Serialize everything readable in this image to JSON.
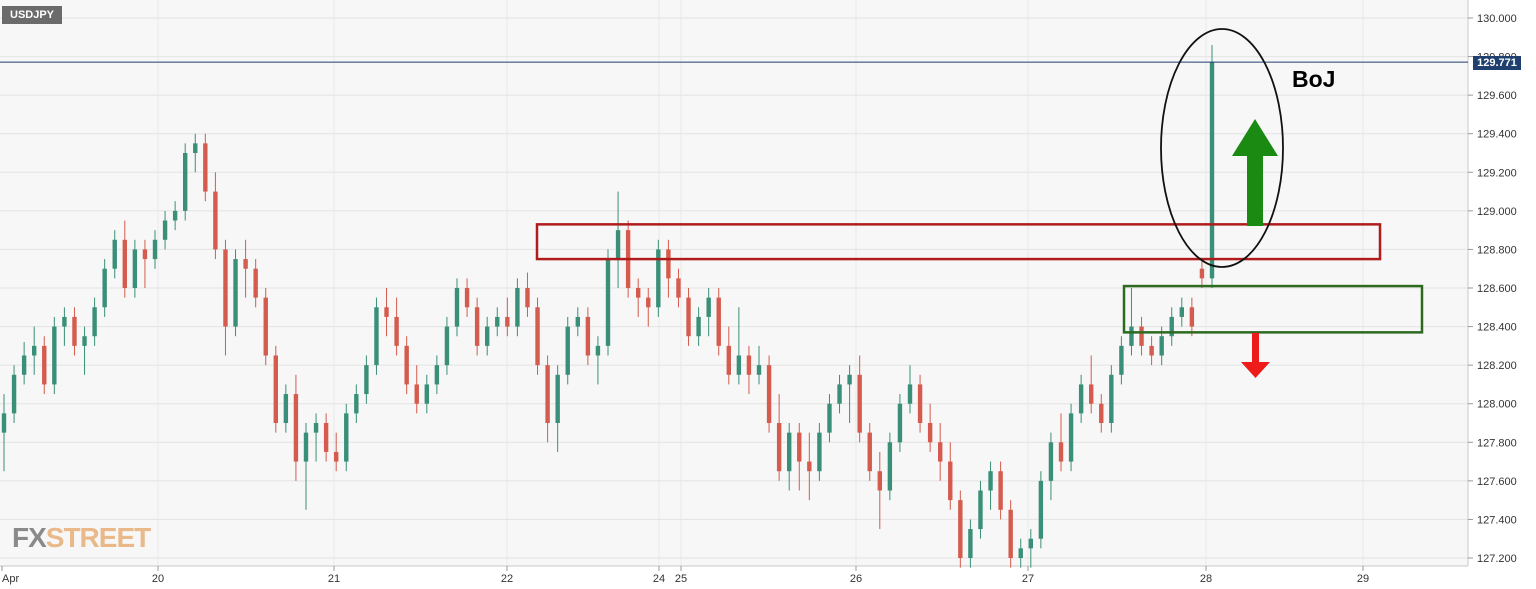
{
  "symbol": "USDJPY",
  "current_price_label": "129.771",
  "annotation_label": "BoJ",
  "logo": {
    "part1": "FX",
    "part2": "STREET"
  },
  "colors": {
    "bullish": "#3a8f78",
    "bearish": "#d45b4d",
    "resistance_box": "#b01c1c",
    "support_box": "#2d6a1f",
    "up_arrow": "#1a8a12",
    "down_arrow": "#ee1b1b",
    "price_line": "#1f3f6e"
  },
  "chart_data": {
    "type": "candlestick",
    "ylim": [
      127.15,
      130.05
    ],
    "yticks": [
      "130.000",
      "129.800",
      "129.600",
      "129.400",
      "129.200",
      "129.000",
      "128.800",
      "128.600",
      "128.400",
      "128.200",
      "128.000",
      "127.800",
      "127.600",
      "127.400",
      "127.200"
    ],
    "xlabels": [
      "Apr",
      "20",
      "21",
      "22",
      "24",
      "25",
      "26",
      "27",
      "28",
      "29"
    ],
    "current_price": 129.771,
    "candles": [
      [
        127.85,
        128.05,
        127.65,
        127.95
      ],
      [
        127.95,
        128.2,
        127.9,
        128.15
      ],
      [
        128.15,
        128.32,
        128.1,
        128.25
      ],
      [
        128.25,
        128.4,
        128.15,
        128.3
      ],
      [
        128.3,
        128.35,
        128.05,
        128.1
      ],
      [
        128.1,
        128.45,
        128.05,
        128.4
      ],
      [
        128.4,
        128.5,
        128.3,
        128.45
      ],
      [
        128.45,
        128.5,
        128.25,
        128.3
      ],
      [
        128.3,
        128.4,
        128.15,
        128.35
      ],
      [
        128.35,
        128.55,
        128.3,
        128.5
      ],
      [
        128.5,
        128.75,
        128.45,
        128.7
      ],
      [
        128.7,
        128.9,
        128.65,
        128.85
      ],
      [
        128.85,
        128.95,
        128.55,
        128.6
      ],
      [
        128.6,
        128.85,
        128.55,
        128.8
      ],
      [
        128.8,
        128.85,
        128.6,
        128.75
      ],
      [
        128.75,
        128.9,
        128.7,
        128.85
      ],
      [
        128.85,
        129.0,
        128.8,
        128.95
      ],
      [
        128.95,
        129.05,
        128.9,
        129.0
      ],
      [
        129.0,
        129.35,
        128.95,
        129.3
      ],
      [
        129.3,
        129.4,
        129.2,
        129.35
      ],
      [
        129.35,
        129.4,
        129.05,
        129.1
      ],
      [
        129.1,
        129.2,
        128.75,
        128.8
      ],
      [
        128.8,
        128.85,
        128.25,
        128.4
      ],
      [
        128.4,
        128.8,
        128.35,
        128.75
      ],
      [
        128.75,
        128.85,
        128.55,
        128.7
      ],
      [
        128.7,
        128.75,
        128.5,
        128.55
      ],
      [
        128.55,
        128.6,
        128.2,
        128.25
      ],
      [
        128.25,
        128.3,
        127.85,
        127.9
      ],
      [
        127.9,
        128.1,
        127.85,
        128.05
      ],
      [
        128.05,
        128.15,
        127.6,
        127.7
      ],
      [
        127.7,
        127.9,
        127.45,
        127.85
      ],
      [
        127.85,
        127.95,
        127.7,
        127.9
      ],
      [
        127.9,
        127.95,
        127.7,
        127.75
      ],
      [
        127.75,
        127.85,
        127.65,
        127.7
      ],
      [
        127.7,
        128.0,
        127.65,
        127.95
      ],
      [
        127.95,
        128.1,
        127.9,
        128.05
      ],
      [
        128.05,
        128.25,
        128.0,
        128.2
      ],
      [
        128.2,
        128.55,
        128.15,
        128.5
      ],
      [
        128.5,
        128.6,
        128.35,
        128.45
      ],
      [
        128.45,
        128.55,
        128.25,
        128.3
      ],
      [
        128.3,
        128.35,
        128.05,
        128.1
      ],
      [
        128.1,
        128.2,
        127.95,
        128.0
      ],
      [
        128.0,
        128.15,
        127.95,
        128.1
      ],
      [
        128.1,
        128.25,
        128.05,
        128.2
      ],
      [
        128.2,
        128.45,
        128.15,
        128.4
      ],
      [
        128.4,
        128.65,
        128.35,
        128.6
      ],
      [
        128.6,
        128.65,
        128.45,
        128.5
      ],
      [
        128.5,
        128.55,
        128.25,
        128.3
      ],
      [
        128.3,
        128.45,
        128.25,
        128.4
      ],
      [
        128.4,
        128.5,
        128.35,
        128.45
      ],
      [
        128.45,
        128.55,
        128.35,
        128.4
      ],
      [
        128.4,
        128.65,
        128.35,
        128.6
      ],
      [
        128.6,
        128.68,
        128.45,
        128.5
      ],
      [
        128.5,
        128.55,
        128.15,
        128.2
      ],
      [
        128.2,
        128.25,
        127.8,
        127.9
      ],
      [
        127.9,
        128.2,
        127.75,
        128.15
      ],
      [
        128.15,
        128.45,
        128.1,
        128.4
      ],
      [
        128.4,
        128.5,
        128.35,
        128.45
      ],
      [
        128.45,
        128.5,
        128.2,
        128.25
      ],
      [
        128.25,
        128.35,
        128.1,
        128.3
      ],
      [
        128.3,
        128.8,
        128.25,
        128.75
      ],
      [
        128.75,
        129.1,
        128.6,
        128.9
      ],
      [
        128.9,
        128.95,
        128.55,
        128.6
      ],
      [
        128.6,
        128.65,
        128.45,
        128.55
      ],
      [
        128.55,
        128.6,
        128.4,
        128.5
      ],
      [
        128.5,
        128.85,
        128.45,
        128.8
      ],
      [
        128.8,
        128.85,
        128.55,
        128.65
      ],
      [
        128.65,
        128.7,
        128.5,
        128.55
      ],
      [
        128.55,
        128.6,
        128.3,
        128.35
      ],
      [
        128.35,
        128.5,
        128.3,
        128.45
      ],
      [
        128.45,
        128.6,
        128.35,
        128.55
      ],
      [
        128.55,
        128.6,
        128.25,
        128.3
      ],
      [
        128.3,
        128.4,
        128.1,
        128.15
      ],
      [
        128.15,
        128.5,
        128.1,
        128.25
      ],
      [
        128.25,
        128.3,
        128.05,
        128.15
      ],
      [
        128.15,
        128.3,
        128.1,
        128.2
      ],
      [
        128.2,
        128.25,
        127.85,
        127.9
      ],
      [
        127.9,
        128.05,
        127.6,
        127.65
      ],
      [
        127.65,
        127.9,
        127.55,
        127.85
      ],
      [
        127.85,
        127.9,
        127.55,
        127.7
      ],
      [
        127.7,
        127.85,
        127.5,
        127.65
      ],
      [
        127.65,
        127.9,
        127.6,
        127.85
      ],
      [
        127.85,
        128.05,
        127.8,
        128.0
      ],
      [
        128.0,
        128.15,
        127.95,
        128.1
      ],
      [
        128.1,
        128.2,
        127.9,
        128.15
      ],
      [
        128.15,
        128.25,
        127.8,
        127.85
      ],
      [
        127.85,
        127.9,
        127.6,
        127.65
      ],
      [
        127.65,
        127.75,
        127.35,
        127.55
      ],
      [
        127.55,
        127.85,
        127.5,
        127.8
      ],
      [
        127.8,
        128.05,
        127.75,
        128.0
      ],
      [
        128.0,
        128.2,
        127.95,
        128.1
      ],
      [
        128.1,
        128.15,
        127.85,
        127.9
      ],
      [
        127.9,
        128.0,
        127.75,
        127.8
      ],
      [
        127.8,
        127.9,
        127.6,
        127.7
      ],
      [
        127.7,
        127.8,
        127.45,
        127.5
      ],
      [
        127.5,
        127.55,
        127.15,
        127.2
      ],
      [
        127.2,
        127.4,
        127.15,
        127.35
      ],
      [
        127.35,
        127.6,
        127.3,
        127.55
      ],
      [
        127.55,
        127.7,
        127.45,
        127.65
      ],
      [
        127.65,
        127.7,
        127.4,
        127.45
      ],
      [
        127.45,
        127.5,
        127.15,
        127.2
      ],
      [
        127.2,
        127.3,
        127.15,
        127.25
      ],
      [
        127.25,
        127.35,
        127.15,
        127.3
      ],
      [
        127.3,
        127.65,
        127.25,
        127.6
      ],
      [
        127.6,
        127.85,
        127.5,
        127.8
      ],
      [
        127.8,
        127.95,
        127.65,
        127.7
      ],
      [
        127.7,
        128.0,
        127.65,
        127.95
      ],
      [
        127.95,
        128.15,
        127.9,
        128.1
      ],
      [
        128.1,
        128.25,
        127.95,
        128.0
      ],
      [
        128.0,
        128.05,
        127.85,
        127.9
      ],
      [
        127.9,
        128.2,
        127.85,
        128.15
      ],
      [
        128.15,
        128.35,
        128.1,
        128.3
      ],
      [
        128.3,
        128.6,
        128.25,
        128.4
      ],
      [
        128.4,
        128.45,
        128.25,
        128.3
      ],
      [
        128.3,
        128.35,
        128.2,
        128.25
      ],
      [
        128.25,
        128.4,
        128.2,
        128.35
      ],
      [
        128.35,
        128.5,
        128.3,
        128.45
      ],
      [
        128.45,
        128.55,
        128.4,
        128.5
      ],
      [
        128.5,
        128.55,
        128.35,
        128.4
      ],
      [
        128.7,
        128.75,
        128.6,
        128.65
      ],
      [
        128.65,
        129.86,
        128.6,
        129.77
      ]
    ],
    "annotations": [
      {
        "type": "resistance-zone",
        "from": 128.75,
        "to": 128.93
      },
      {
        "type": "support-zone",
        "from": 128.37,
        "to": 128.61
      },
      {
        "type": "arrow",
        "direction": "up"
      },
      {
        "type": "arrow",
        "direction": "down"
      },
      {
        "type": "ellipse",
        "label": "BoJ"
      }
    ]
  }
}
